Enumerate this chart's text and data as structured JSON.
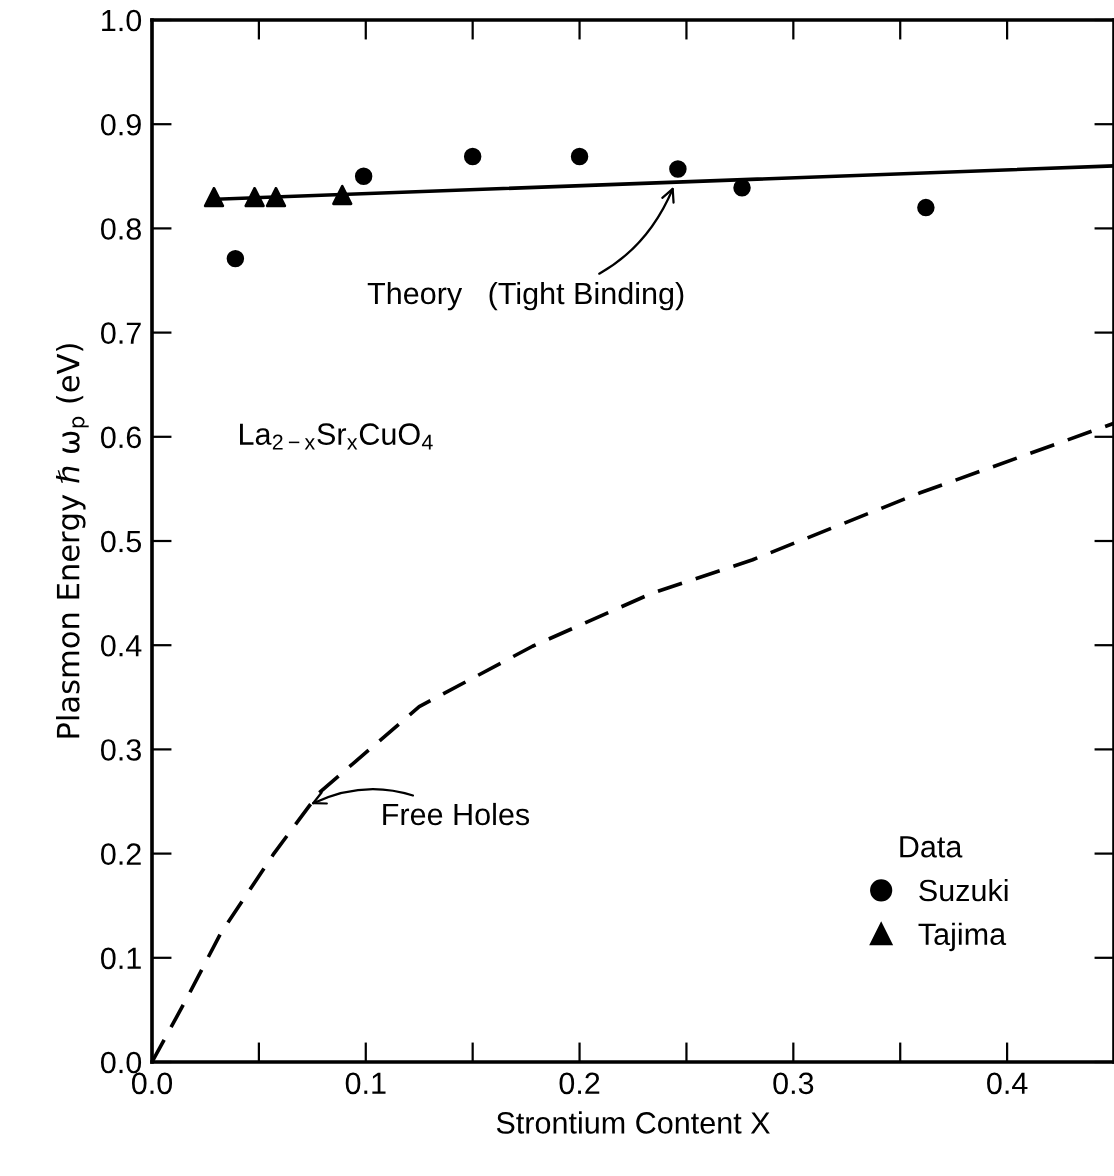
{
  "chart_data": {
    "type": "scatter",
    "xlabel": "Strontium Content X",
    "ylabel": "Plasmon Energy ℏ ω$_{p}$ (eV)",
    "legend_title": "Data",
    "legend": "bottom right",
    "grid": false,
    "xlim": [
      0,
      0.45
    ],
    "ylim": [
      0,
      1.0
    ],
    "xticks": [
      {
        "value": 0.0,
        "label": "0.0"
      },
      {
        "value": 0.05,
        "label": null
      },
      0.1,
      {
        "value": 0.15,
        "label": null
      },
      0.2,
      {
        "value": 0.25,
        "label": null
      },
      0.3,
      {
        "value": 0.35,
        "label": null
      },
      0.4
    ],
    "yticks": [
      {
        "value": 0.0,
        "label": "0.0"
      },
      0.1,
      0.2,
      0.3,
      0.4,
      0.5,
      0.6,
      0.7,
      0.8,
      0.9,
      {
        "value": 1.0,
        "label": "1.0"
      }
    ],
    "series": [
      {
        "name": "Suzuki",
        "marker": "circle",
        "color": "#000000",
        "x": [
          0.039,
          0.099,
          0.15,
          0.2,
          0.246,
          0.276,
          0.362
        ],
        "values": [
          0.771,
          0.85,
          0.869,
          0.869,
          0.857,
          0.839,
          0.82
        ]
      },
      {
        "name": "Tajima",
        "marker": "triangle",
        "color": "#000000",
        "x": [
          0.029,
          0.048,
          0.058,
          0.089
        ],
        "values": [
          0.83,
          0.83,
          0.83,
          0.832
        ]
      },
      {
        "type": "line",
        "line_style": "solid",
        "color": "#000000",
        "x": [
          0.03,
          0.45
        ],
        "values": [
          0.828,
          0.86
        ]
      },
      {
        "type": "line",
        "line_style": "dashed",
        "color": "#000000",
        "x": [
          0.0,
          0.016,
          0.032,
          0.057,
          0.078,
          0.125,
          0.178,
          0.234,
          0.281,
          0.359,
          0.45
        ],
        "values": [
          0.0,
          0.06,
          0.123,
          0.2,
          0.258,
          0.341,
          0.399,
          0.45,
          0.482,
          0.546,
          0.613
        ]
      }
    ],
    "annotations": [
      {
        "text": "Theory   (Tight Binding)",
        "x": 0.245,
        "y": 0.845
      },
      {
        "text": "Free Holes",
        "x": 0.072,
        "y": 0.245
      },
      "La$_{2−x}$Sr$_{x}$CuO$_{4}$"
    ]
  }
}
